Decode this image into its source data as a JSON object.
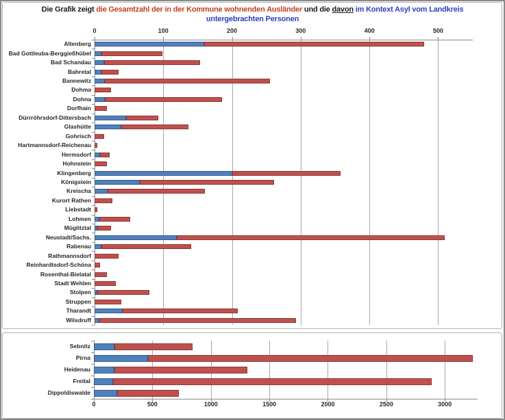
{
  "title": {
    "prefix": "Die Grafik zeigt ",
    "red_part": "die Gesamtzahl der in der Kommune wohnenden Ausländer",
    "mid_part": " und die ",
    "underlined_part": "davon",
    "blue_part_line1": " im Kontext Asyl vom Landkreis",
    "blue_part_line2": "untergebrachten Personen"
  },
  "colors": {
    "asyl_blue_fill": "#4f81bd",
    "asyl_blue_border": "#385d8a",
    "total_red_fill": "#c0504d",
    "total_red_border": "#8c3836",
    "title_red": "#c23f22",
    "title_blue": "#2d3fc4",
    "gridline": "#a6a6a6",
    "axis": "#8c8c8c",
    "label_text": "#262626"
  },
  "chart_data": [
    {
      "type": "bar",
      "subtype": "horizontal-stacked",
      "title": "",
      "legend_position": "none",
      "grid": true,
      "value_axis": {
        "ticks": [
          0,
          100,
          200,
          300,
          400,
          500
        ],
        "max": 550,
        "labels_position": "top"
      },
      "series_semantics": {
        "blue": "davon im Kontext Asyl vom Landkreis untergebrachte Personen",
        "red_extension": "Gesamtzahl der in der Kommune wohnenden Ausländer"
      },
      "categories": [
        "Altenberg",
        "Bad Gottleuba-Berggießhübel",
        "Bad Schandau",
        "Bahretal",
        "Bannewitz",
        "Dohma",
        "Dohna",
        "Dorfhain",
        "Dürrröhrsdorf-Dittersbach",
        "Glashütte",
        "Gohrisch",
        "Hartmannsdorf-Reichenau",
        "Hermsdorf",
        "Hohnstein",
        "Klingenberg",
        "Königstein",
        "Kreischa",
        "Kurort Rathen",
        "Liebstadt",
        "Lohmen",
        "Müglitztal",
        "Neustadt/Sachs.",
        "Rabenau",
        "Rathmannsdorf",
        "Reinhardtsdorf-Schöna",
        "Rosenthal-Bielatal",
        "Stadt Wehlen",
        "Stolpen",
        "Struppen",
        "Tharandt",
        "Wilsdruff"
      ],
      "asyl_values": [
        160,
        10,
        14,
        10,
        15,
        0,
        15,
        0,
        46,
        39,
        0,
        0,
        8,
        0,
        200,
        66,
        19,
        0,
        0,
        7,
        4,
        120,
        10,
        0,
        0,
        0,
        0,
        4,
        0,
        41,
        7
      ],
      "total_values": [
        480,
        99,
        154,
        35,
        255,
        24,
        186,
        18,
        93,
        137,
        14,
        4,
        22,
        18,
        358,
        261,
        161,
        26,
        4,
        52,
        24,
        510,
        141,
        35,
        8,
        18,
        31,
        80,
        39,
        208,
        293
      ]
    },
    {
      "type": "bar",
      "subtype": "horizontal-stacked",
      "title": "",
      "legend_position": "none",
      "grid": true,
      "value_axis": {
        "ticks": [
          0,
          500,
          1000,
          1500,
          2000,
          2500,
          3000
        ],
        "max": 3280,
        "labels_position": "bottom"
      },
      "series_semantics": {
        "blue": "davon im Kontext Asyl vom Landkreis untergebrachte Personen",
        "red_extension": "Gesamtzahl der in der Kommune wohnenden Ausländer"
      },
      "categories": [
        "Sebnitz",
        "Pirna",
        "Heidenau",
        "Freital",
        "Dippoldiswalde"
      ],
      "asyl_values": [
        175,
        460,
        175,
        165,
        200
      ],
      "total_values": [
        845,
        3240,
        1310,
        2890,
        727
      ]
    }
  ]
}
